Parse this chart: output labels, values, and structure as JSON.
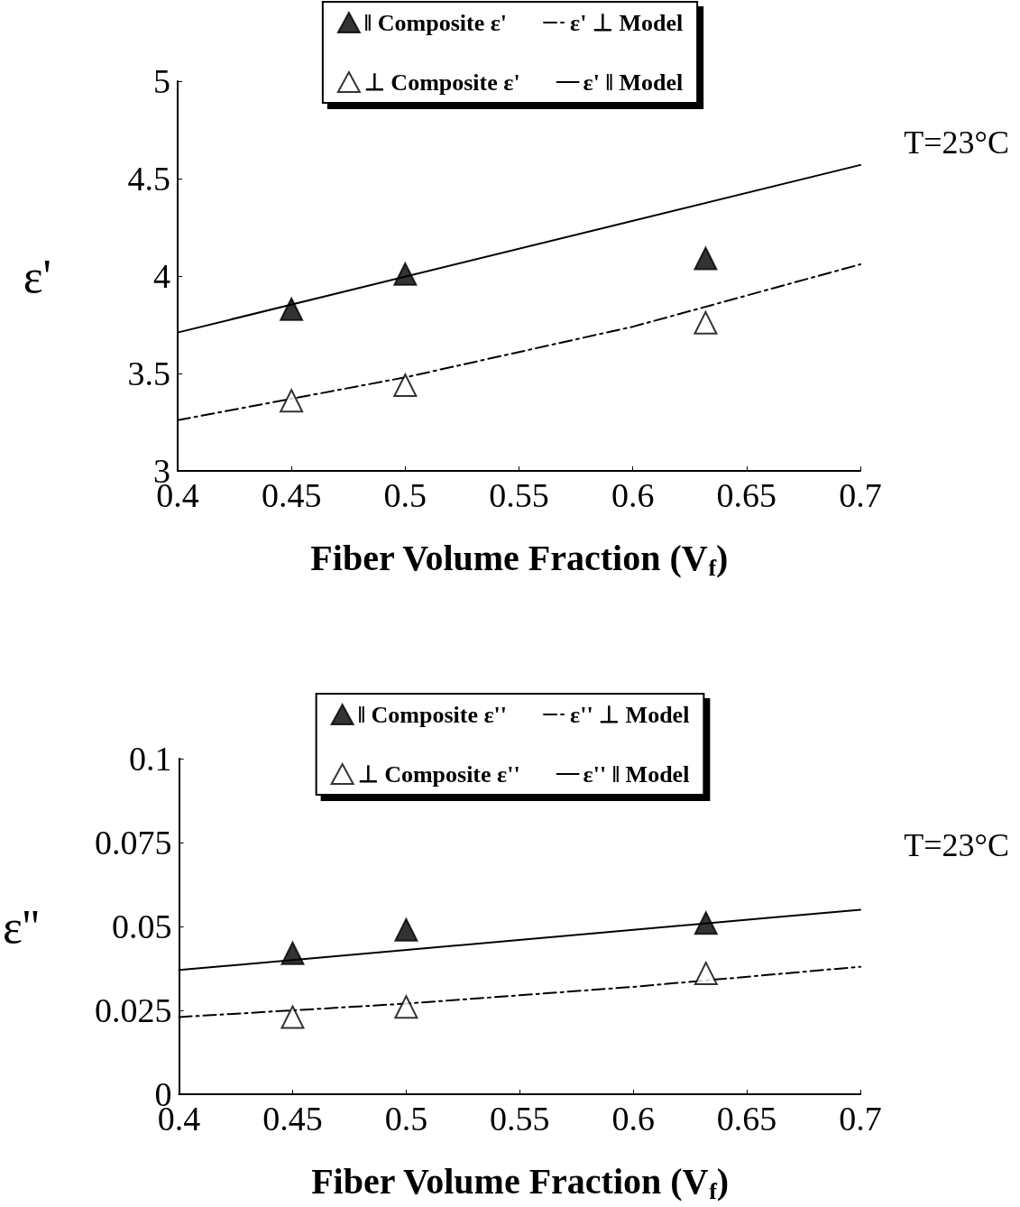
{
  "chart_data": [
    {
      "type": "scatter",
      "xlabel": "Fiber Volume Fraction (V$_{f}$)",
      "ylabel": "ε'",
      "xlim": [
        0.4,
        0.7
      ],
      "xticks": [
        0.4,
        0.45,
        0.5,
        0.55,
        0.6,
        0.65,
        0.7
      ],
      "ylim": [
        3,
        5
      ],
      "yticks": [
        3,
        3.5,
        4,
        4.5,
        5
      ],
      "grid": false,
      "legend": "top",
      "marker": "triangle",
      "annotations": [
        "T=23°C"
      ],
      "series": [
        {
          "name": "‖ Composite ε'",
          "color": "#000000",
          "x": [
            0.45,
            0.5,
            0.632
          ],
          "values": [
            3.83,
            4.01,
            4.09
          ]
        },
        {
          "name": "ε' ⊥ Model",
          "type": "line",
          "line_style": "dashed",
          "marker": "none",
          "color": "#000000",
          "x": [
            0.4,
            0.5,
            0.6,
            0.7
          ],
          "values": [
            3.26,
            3.48,
            3.74,
            4.06
          ]
        },
        {
          "name": "⊥ Composite ε'",
          "color": "#ffffff",
          "x": [
            0.45,
            0.5,
            0.632
          ],
          "values": [
            3.36,
            3.44,
            3.76
          ]
        },
        {
          "name": "ε' ‖ Model",
          "type": "line",
          "line_style": "solid",
          "marker": "none",
          "color": "#000000",
          "x": [
            0.4,
            0.7
          ],
          "values": [
            3.71,
            4.57
          ]
        }
      ]
    },
    {
      "type": "scatter",
      "xlabel": "Fiber Volume Fraction (V$_{f}$)",
      "ylabel": "ε''",
      "xlim": [
        0.4,
        0.7
      ],
      "xticks": [
        0.4,
        0.45,
        0.5,
        0.55,
        0.6,
        0.65,
        0.7
      ],
      "ylim": [
        0,
        0.1
      ],
      "yticks": [
        0,
        0.025,
        0.05,
        0.075,
        0.1
      ],
      "grid": false,
      "legend": "top",
      "marker": "triangle",
      "annotations": [
        "T=23°C"
      ],
      "series": [
        {
          "name": "‖ Composite ε''",
          "color": "#000000",
          "x": [
            0.45,
            0.5,
            0.632
          ],
          "values": [
            0.042,
            0.049,
            0.051
          ]
        },
        {
          "name": "ε'' ⊥ Model",
          "type": "line",
          "line_style": "dashed",
          "marker": "none",
          "color": "#000000",
          "x": [
            0.4,
            0.5,
            0.6,
            0.7
          ],
          "values": [
            0.023,
            0.027,
            0.032,
            0.038
          ]
        },
        {
          "name": "⊥ Composite ε''",
          "color": "#ffffff",
          "x": [
            0.45,
            0.5,
            0.632
          ],
          "values": [
            0.023,
            0.026,
            0.036
          ]
        },
        {
          "name": "ε'' ‖ Model",
          "type": "line",
          "line_style": "solid",
          "marker": "none",
          "color": "#000000",
          "x": [
            0.4,
            0.7
          ],
          "values": [
            0.037,
            0.055
          ]
        }
      ]
    }
  ]
}
